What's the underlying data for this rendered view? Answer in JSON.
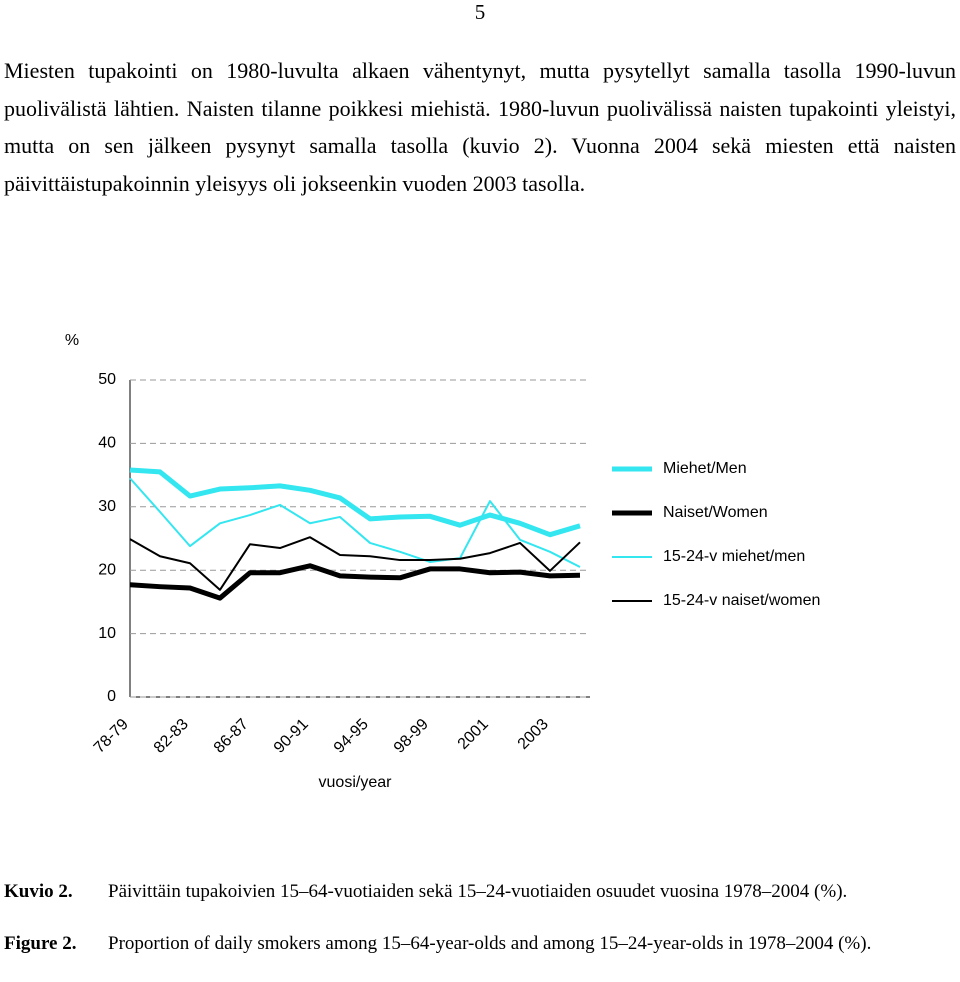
{
  "page_number": "5",
  "paragraph": "Miesten tupakointi on 1980-luvulta alkaen vähentynyt, mutta pysytellyt samalla tasolla 1990-luvun puolivälistä lähtien. Naisten tilanne poikkesi miehistä. 1980-luvun puolivälissä naisten tupakointi yleistyi, mutta on sen jälkeen pysynyt samalla tasolla (kuvio 2). Vuonna 2004 sekä miesten että naisten päivittäistupakoinnin yleisyys oli jokseenkin vuoden 2003 tasolla.",
  "chart_data": {
    "type": "line",
    "ylabel": "%",
    "xlabel": "vuosi/year",
    "categories": [
      "78-79",
      null,
      "82-83",
      null,
      "86-87",
      null,
      "90-91",
      null,
      "94-95",
      null,
      "98-99",
      null,
      "2001",
      null,
      "2003",
      null
    ],
    "ylim": [
      0,
      50
    ],
    "yticks": [
      0,
      10,
      20,
      30,
      40,
      50
    ],
    "grid": true,
    "series": [
      {
        "name": "Miehet/Men",
        "color": "#33e6f0",
        "line_width": 5,
        "values": [
          35.8,
          35.5,
          31.7,
          32.8,
          33.0,
          33.3,
          32.6,
          31.4,
          28.1,
          28.4,
          28.5,
          27.1,
          28.7,
          27.4,
          25.6,
          27.0
        ]
      },
      {
        "name": "Naiset/Women",
        "color": "#000000",
        "line_width": 5,
        "values": [
          17.7,
          17.4,
          17.2,
          15.6,
          19.6,
          19.6,
          20.7,
          19.1,
          18.9,
          18.8,
          20.2,
          20.2,
          19.6,
          19.7,
          19.1,
          19.2
        ]
      },
      {
        "name": "15-24-v miehet/men",
        "color": "#33e6f0",
        "line_width": 2,
        "values": [
          34.5,
          29.2,
          23.8,
          27.4,
          28.7,
          30.3,
          27.4,
          28.4,
          24.3,
          22.9,
          21.3,
          21.9,
          30.9,
          24.8,
          22.9,
          20.5
        ]
      },
      {
        "name": "15-24-v naiset/women",
        "color": "#000000",
        "line_width": 2,
        "values": [
          24.9,
          22.2,
          21.1,
          16.9,
          24.1,
          23.5,
          25.2,
          22.4,
          22.2,
          21.6,
          21.6,
          21.8,
          22.7,
          24.3,
          19.9,
          24.4
        ]
      }
    ]
  },
  "captions": [
    {
      "label": "Kuvio 2.",
      "text": "Päivittäin tupakoivien 15–64-vuotiaiden sekä 15–24-vuotiaiden osuudet vuosina 1978–2004 (%)."
    },
    {
      "label": "Figure 2.",
      "text": "Proportion of daily smokers among 15–64-year-olds and among 15–24-year-olds in 1978–2004 (%)."
    }
  ]
}
